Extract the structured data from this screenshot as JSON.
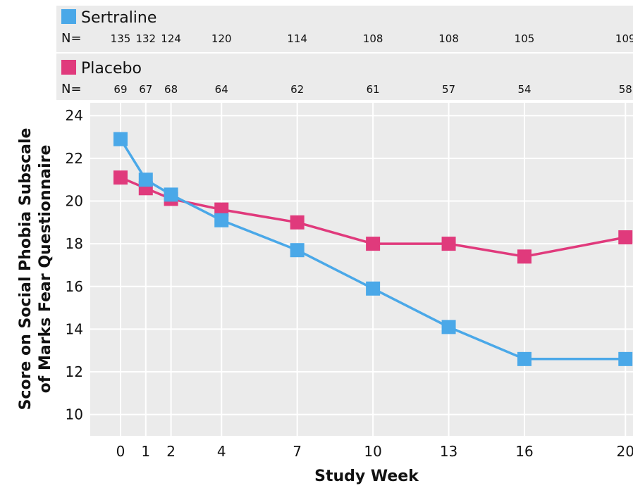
{
  "chart_data": {
    "type": "line",
    "xlabel": "Study Week",
    "ylabel_lines": [
      "Score on Social Phobia Subscale",
      "of Marks Fear Questionnaire"
    ],
    "x": [
      0,
      1,
      2,
      4,
      7,
      10,
      13,
      16,
      20
    ],
    "x_ticks": [
      0,
      1,
      2,
      4,
      7,
      10,
      13,
      16,
      20
    ],
    "xlim": [
      -1.2,
      20.3
    ],
    "y_ticks": [
      10,
      12,
      14,
      16,
      18,
      20,
      22,
      24
    ],
    "ylim": [
      9,
      24.6
    ],
    "grid": true,
    "n_label": "N=",
    "series": [
      {
        "name": "Sertraline",
        "color": "#4aa8e8",
        "values": [
          22.9,
          21.0,
          20.3,
          19.1,
          17.7,
          15.9,
          14.1,
          12.6,
          12.6
        ],
        "n": [
          135,
          132,
          124,
          120,
          114,
          108,
          108,
          105,
          109
        ]
      },
      {
        "name": "Placebo",
        "color": "#e03a7c",
        "values": [
          21.1,
          20.6,
          20.1,
          19.6,
          19.0,
          18.0,
          18.0,
          17.4,
          18.3
        ],
        "n": [
          69,
          67,
          68,
          64,
          62,
          61,
          57,
          54,
          58
        ]
      }
    ]
  }
}
